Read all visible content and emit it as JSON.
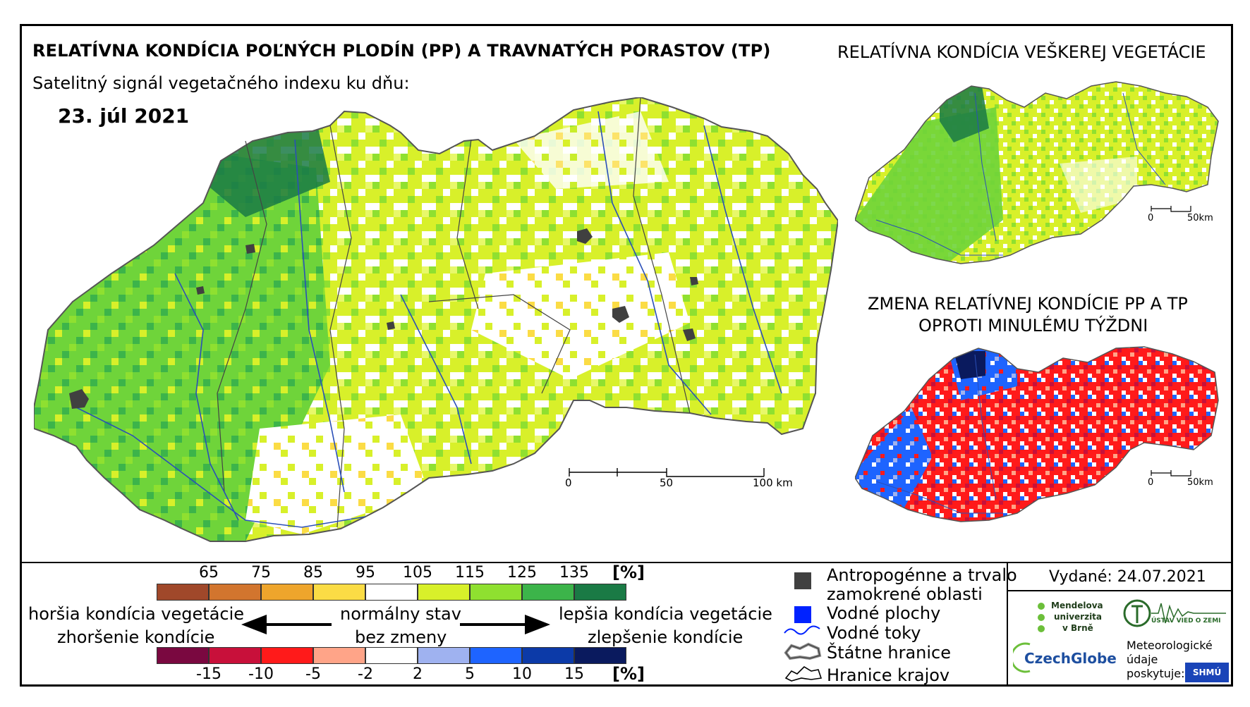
{
  "main_title": "RELATÍVNA KONDÍCIA POĽNÝCH PLODÍN (PP) A TRAVNATÝCH PORASTOV (TP)",
  "subtitle": "Satelitný signál vegetačného indexu ku dňu:",
  "date": "23. júl 2021",
  "right_title": "RELATÍVNA KONDÍCIA VEŠKEREJ VEGETÁCIE",
  "change_title_line1": "ZMENA RELATÍVNEJ KONDÍCIE PP A TP",
  "change_title_line2": "OPROTI MINULÉMU TÝŽDNI",
  "main_scale": {
    "labels": [
      "0",
      "50",
      "100 km"
    ]
  },
  "small_scale": {
    "labels": [
      "0",
      "50km"
    ]
  },
  "condition_scale": {
    "ticks": [
      "65",
      "75",
      "85",
      "95",
      "105",
      "115",
      "125",
      "135"
    ],
    "unit": "[%]",
    "colors": [
      "#a0482a",
      "#d2752e",
      "#eea52c",
      "#fbdc45",
      "#ffffff",
      "#d8f02a",
      "#8fe030",
      "#3cb44a",
      "#1a7a45"
    ]
  },
  "change_scale": {
    "ticks": [
      "-15",
      "-10",
      "-5",
      "-2",
      "2",
      "5",
      "10",
      "15"
    ],
    "unit": "[%]",
    "colors": [
      "#7a0840",
      "#c8103a",
      "#ff1a1a",
      "#ffa488",
      "#ffffff",
      "#9fb2f0",
      "#1e64ff",
      "#0c3aa8",
      "#0a1a5e"
    ]
  },
  "legend_words": {
    "worse_1": "horšia kondícia vegetácie",
    "worse_2": "zhoršenie kondície",
    "normal_1": "normálny stav",
    "normal_2": "bez zmeny",
    "better_1": "lepšia kondícia vegetácie",
    "better_2": "zlepšenie kondície"
  },
  "map_legend": {
    "anthropogenic_1": "Antropogénne a trvalo",
    "anthropogenic_2": "zamokrené oblasti",
    "water_areas": "Vodné plochy",
    "rivers": "Vodné toky",
    "borders": "Štátne hranice",
    "regions": "Hranice krajov"
  },
  "issued": "Vydané: 24.07.2021",
  "logos": {
    "mendel_1": "Mendelova",
    "mendel_2": "univerzita",
    "mendel_3": "v Brně",
    "czechglobe": "CzechGlobe",
    "ustav": "ÚSTAV VIED O ZEMI",
    "meteo_1": "Meteorologické",
    "meteo_2": "údaje",
    "meteo_3": "poskytuje:",
    "shmu": "SHMÚ"
  }
}
